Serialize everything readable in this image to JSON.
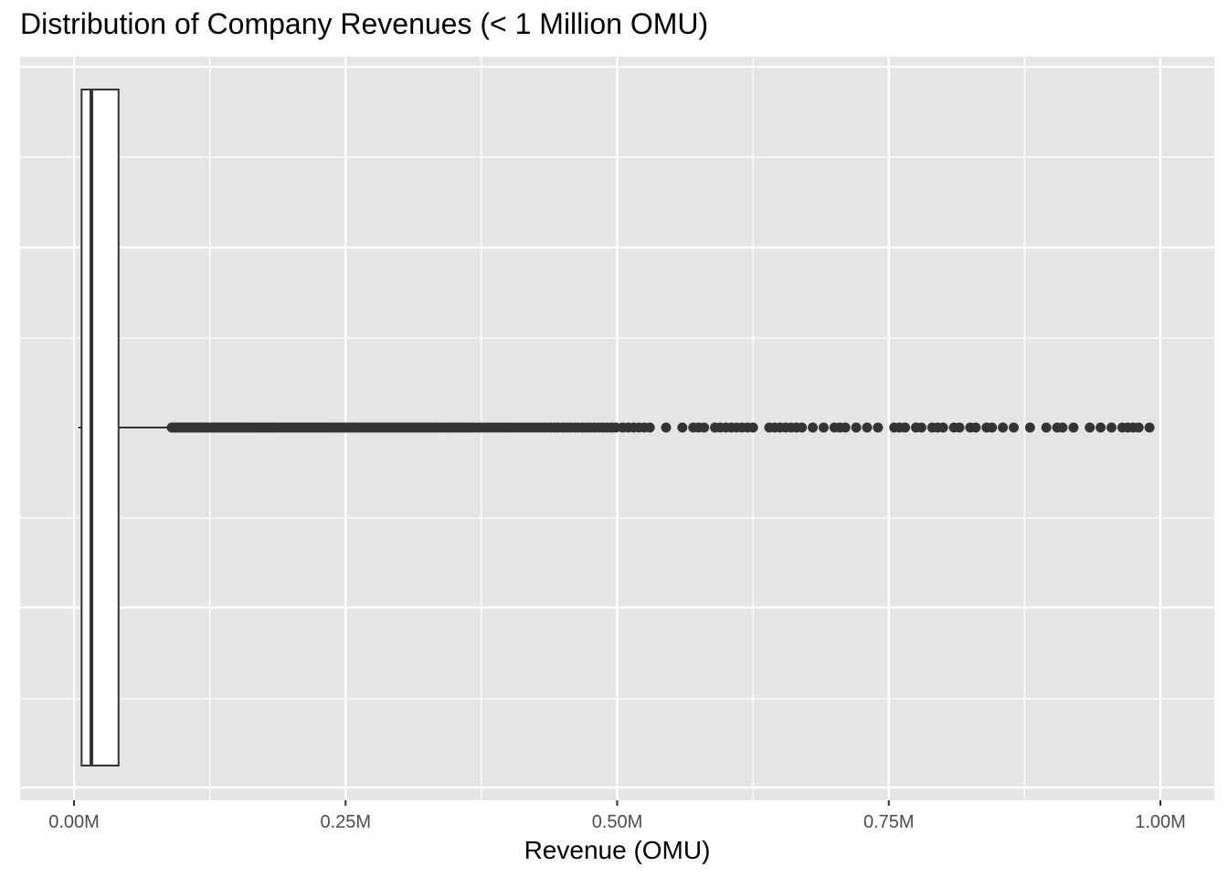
{
  "chart_data": {
    "type": "boxplot",
    "title": "Distribution of Company Revenues (< 1 Million OMU)",
    "xlabel": "Revenue (OMU)",
    "ylabel": "",
    "xlim": [
      -0.02,
      1.05
    ],
    "x_unit": "million OMU",
    "x_ticks": [
      0,
      0.25,
      0.5,
      0.75,
      1.0
    ],
    "x_tick_labels": [
      "0.00M",
      "0.25M",
      "0.50M",
      "0.75M",
      "1.00M"
    ],
    "orientation": "horizontal",
    "grid": true,
    "box": {
      "min": 0.004,
      "q1": 0.007,
      "median": 0.016,
      "q3": 0.041,
      "whisker_high": 0.088
    },
    "outliers_dense_range": [
      0.09,
      0.5
    ],
    "outliers_sparse": [
      0.505,
      0.51,
      0.515,
      0.52,
      0.525,
      0.53,
      0.545,
      0.56,
      0.57,
      0.575,
      0.58,
      0.59,
      0.595,
      0.6,
      0.605,
      0.61,
      0.615,
      0.62,
      0.625,
      0.64,
      0.645,
      0.65,
      0.655,
      0.66,
      0.665,
      0.67,
      0.68,
      0.69,
      0.7,
      0.705,
      0.71,
      0.72,
      0.73,
      0.74,
      0.755,
      0.76,
      0.765,
      0.775,
      0.78,
      0.79,
      0.795,
      0.8,
      0.81,
      0.815,
      0.825,
      0.83,
      0.84,
      0.845,
      0.855,
      0.865,
      0.88,
      0.895,
      0.905,
      0.91,
      0.92,
      0.935,
      0.945,
      0.955,
      0.965,
      0.97,
      0.975,
      0.98,
      0.99
    ],
    "colors": {
      "panel_background": "#e5e5e5",
      "grid_major": "#ffffff",
      "grid_minor": "#f2f2f2",
      "box_fill": "#ffffff",
      "box_line": "#333333",
      "outlier": "#333333"
    }
  }
}
